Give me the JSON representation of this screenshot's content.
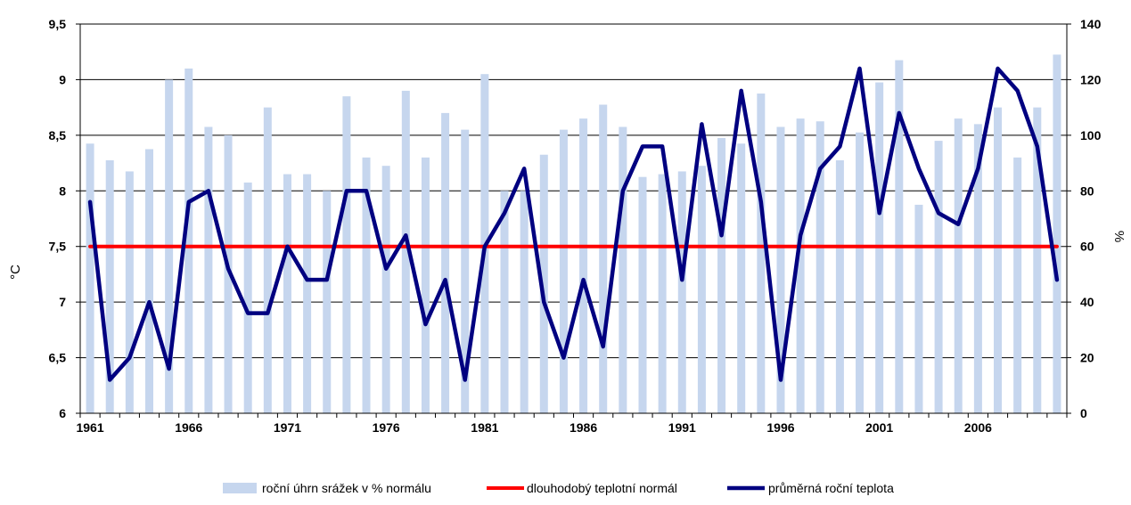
{
  "chart_data": {
    "type": "bar+line",
    "x_categories": [
      1961,
      1962,
      1963,
      1964,
      1965,
      1966,
      1967,
      1968,
      1969,
      1970,
      1971,
      1972,
      1973,
      1974,
      1975,
      1976,
      1977,
      1978,
      1979,
      1980,
      1981,
      1982,
      1983,
      1984,
      1985,
      1986,
      1987,
      1988,
      1989,
      1990,
      1991,
      1992,
      1993,
      1994,
      1995,
      1996,
      1997,
      1998,
      1999,
      2000,
      2001,
      2002,
      2003,
      2004,
      2005,
      2006,
      2007,
      2008,
      2009,
      2010
    ],
    "x_tick_labels": [
      "1961",
      "1966",
      "1971",
      "1976",
      "1981",
      "1986",
      "1991",
      "1996",
      "2001",
      "2006"
    ],
    "y_left": {
      "label": "°C",
      "min": 6,
      "max": 9.5,
      "ticks": [
        "6",
        "6,5",
        "7",
        "7,5",
        "8",
        "8,5",
        "9",
        "9,5"
      ]
    },
    "y_right": {
      "label": "%",
      "min": 0,
      "max": 140,
      "ticks": [
        "0",
        "20",
        "40",
        "60",
        "80",
        "100",
        "120",
        "140"
      ]
    },
    "grid": true,
    "legend_position": "bottom",
    "series": [
      {
        "name": "roční úhrn srážek v % normálu",
        "kind": "bar",
        "axis": "right",
        "color": "#c6d6ee",
        "values": [
          97,
          91,
          87,
          95,
          120,
          124,
          103,
          100,
          83,
          110,
          86,
          86,
          80,
          114,
          92,
          89,
          116,
          92,
          108,
          102,
          122,
          80,
          80,
          93,
          102,
          106,
          111,
          103,
          85,
          86,
          87,
          89,
          99,
          97,
          115,
          103,
          106,
          105,
          91,
          101,
          119,
          127,
          75,
          98,
          106,
          104,
          110,
          92,
          110,
          129
        ]
      },
      {
        "name": "dlouhodobý teplotní normál",
        "kind": "line",
        "axis": "left",
        "color": "#ff0000",
        "values": [
          7.5,
          7.5,
          7.5,
          7.5,
          7.5,
          7.5,
          7.5,
          7.5,
          7.5,
          7.5,
          7.5,
          7.5,
          7.5,
          7.5,
          7.5,
          7.5,
          7.5,
          7.5,
          7.5,
          7.5,
          7.5,
          7.5,
          7.5,
          7.5,
          7.5,
          7.5,
          7.5,
          7.5,
          7.5,
          7.5,
          7.5,
          7.5,
          7.5,
          7.5,
          7.5,
          7.5,
          7.5,
          7.5,
          7.5,
          7.5,
          7.5,
          7.5,
          7.5,
          7.5,
          7.5,
          7.5,
          7.5,
          7.5,
          7.5,
          7.5
        ]
      },
      {
        "name": "průměrná roční teplota",
        "kind": "line",
        "axis": "left",
        "color": "#000080",
        "values": [
          7.9,
          6.3,
          6.5,
          7.0,
          6.4,
          7.9,
          8.0,
          7.3,
          6.9,
          6.9,
          7.5,
          7.2,
          7.2,
          8.0,
          8.0,
          7.3,
          7.6,
          6.8,
          7.2,
          6.3,
          7.5,
          7.8,
          8.2,
          7.0,
          6.5,
          7.2,
          6.6,
          8.0,
          8.4,
          8.4,
          7.2,
          8.6,
          7.6,
          8.9,
          7.9,
          6.3,
          7.6,
          8.2,
          8.4,
          9.1,
          7.8,
          8.7,
          8.2,
          7.8,
          7.7,
          8.2,
          9.1,
          8.9,
          8.4,
          7.2
        ]
      }
    ]
  }
}
